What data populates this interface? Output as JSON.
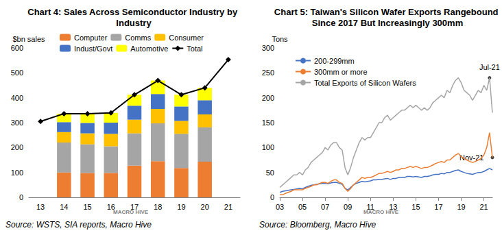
{
  "chart_data": [
    {
      "type": "bar",
      "title": "Chart 4: Sales Across Semiconductor Industry by Industry",
      "y_label": "$bn sales",
      "source": "Source: WSTS, SIA reports, Macro Hive",
      "logo": "MACRO HIVE",
      "stacked": true,
      "grid": false,
      "legend": "upper left",
      "categories": [
        "13",
        "14",
        "15",
        "16",
        "17",
        "18",
        "19",
        "20",
        "21"
      ],
      "ylim": [
        0,
        600
      ],
      "yticks": [
        0,
        100,
        200,
        300,
        400,
        500,
        600
      ],
      "series": [
        {
          "name": "Computer",
          "color": "#ED7D31",
          "type": "bar",
          "values": [
            null,
            100,
            98,
            98,
            127,
            145,
            118,
            143,
            null
          ]
        },
        {
          "name": "Comms",
          "color": "#A5A5A5",
          "type": "bar",
          "values": [
            null,
            120,
            115,
            107,
            130,
            152,
            137,
            138,
            null
          ]
        },
        {
          "name": "Consumer",
          "color": "#FFC000",
          "type": "bar",
          "values": [
            null,
            42,
            44,
            50,
            55,
            58,
            52,
            52,
            null
          ]
        },
        {
          "name": "Indust/Govt",
          "color": "#4472C4",
          "type": "bar",
          "values": [
            null,
            40,
            42,
            45,
            56,
            60,
            58,
            57,
            null
          ]
        },
        {
          "name": "Automotive",
          "color": "#FFFF00",
          "type": "bar",
          "values": [
            null,
            34,
            37,
            39,
            44,
            54,
            47,
            50,
            null
          ]
        },
        {
          "name": "Total",
          "color": "#000000",
          "type": "line",
          "marker": "diamond",
          "line_style": "solid",
          "values": [
            305,
            336,
            336,
            339,
            412,
            469,
            412,
            440,
            553
          ]
        }
      ]
    },
    {
      "type": "line",
      "title": "Chart 5: Taiwan's Silicon Wafer Exports Rangebound Since 2017 But Increasingly 300mm",
      "y_label": "Tons",
      "source": "Source: Bloomberg, Macro Hive",
      "logo": "MACRO HIVE",
      "grid": false,
      "legend": "upper left",
      "categories": [
        "03",
        null,
        null,
        null,
        null,
        null,
        null,
        null,
        "05",
        null,
        null,
        null,
        null,
        null,
        null,
        null,
        "07",
        null,
        null,
        null,
        null,
        null,
        null,
        null,
        "09",
        null,
        null,
        null,
        null,
        null,
        null,
        null,
        "11",
        null,
        null,
        null,
        null,
        null,
        null,
        null,
        "13",
        null,
        null,
        null,
        null,
        null,
        null,
        null,
        "15",
        null,
        null,
        null,
        null,
        null,
        null,
        null,
        "17",
        null,
        null,
        null,
        null,
        null,
        null,
        null,
        "19",
        null,
        null,
        null,
        null,
        null,
        null,
        null,
        "21",
        null,
        null,
        null
      ],
      "ylim": [
        0,
        300
      ],
      "yticks": [
        0,
        50,
        100,
        150,
        200,
        250,
        300
      ],
      "series": [
        {
          "name": "200-299mm",
          "color": "#4472C4",
          "line_style": "solid",
          "values": [
            10,
            12,
            13,
            14,
            15,
            16,
            17,
            18,
            17,
            20,
            22,
            24,
            25,
            26,
            27,
            28,
            28,
            27,
            29,
            30,
            30,
            28,
            26,
            18,
            15,
            20,
            25,
            28,
            30,
            32,
            31,
            32,
            33,
            35,
            35,
            36,
            36,
            37,
            38,
            36,
            38,
            38,
            40,
            40,
            40,
            42,
            42,
            41,
            42,
            41,
            40,
            42,
            42,
            43,
            45,
            46,
            46,
            48,
            47,
            50,
            50,
            52,
            54,
            55,
            52,
            50,
            48,
            47,
            46,
            48,
            50,
            50,
            52,
            55,
            58,
            55
          ]
        },
        {
          "name": "300mm or more",
          "color": "#ED7D31",
          "line_style": "solid",
          "values": [
            5,
            5,
            8,
            10,
            12,
            15,
            15,
            15,
            15,
            18,
            20,
            22,
            25,
            25,
            28,
            30,
            30,
            28,
            32,
            35,
            35,
            30,
            28,
            18,
            12,
            18,
            25,
            30,
            35,
            40,
            38,
            40,
            40,
            42,
            45,
            48,
            48,
            50,
            52,
            50,
            52,
            55,
            55,
            58,
            58,
            60,
            62,
            60,
            62,
            60,
            58,
            60,
            60,
            62,
            65,
            68,
            70,
            72,
            70,
            75,
            75,
            80,
            85,
            88,
            82,
            78,
            75,
            72,
            70,
            72,
            75,
            78,
            85,
            100,
            130,
            80
          ]
        },
        {
          "name": "Total Exports of Silicon Wafers",
          "color": "#A5A5A5",
          "line_style": "solid",
          "values": [
            20,
            25,
            30,
            35,
            40,
            45,
            45,
            50,
            45,
            55,
            60,
            70,
            75,
            80,
            85,
            90,
            100,
            95,
            105,
            110,
            110,
            100,
            95,
            60,
            45,
            60,
            80,
            95,
            110,
            120,
            115,
            120,
            120,
            130,
            140,
            150,
            150,
            160,
            165,
            155,
            160,
            165,
            170,
            175,
            175,
            180,
            185,
            180,
            185,
            180,
            175,
            180,
            175,
            180,
            190,
            195,
            200,
            205,
            200,
            215,
            210,
            225,
            235,
            240,
            230,
            215,
            210,
            205,
            195,
            205,
            215,
            210,
            225,
            215,
            240,
            170
          ]
        }
      ],
      "annotations": [
        {
          "text": "Jul-21",
          "series": "Total Exports of Silicon Wafers",
          "index": 74
        },
        {
          "text": "Nov-21",
          "series": "300mm or more",
          "index": 75
        }
      ]
    }
  ]
}
